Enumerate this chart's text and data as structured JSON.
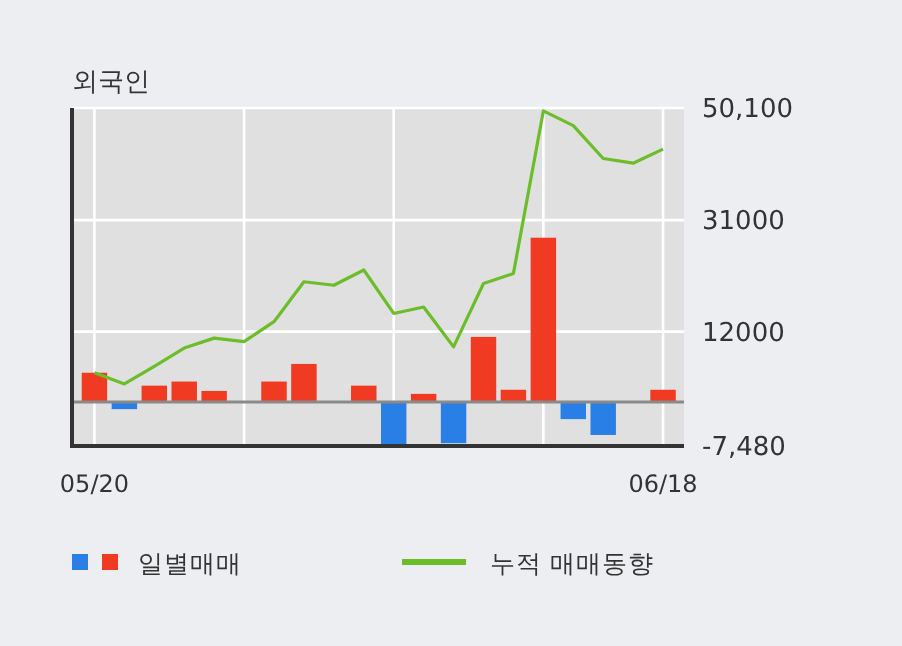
{
  "chart_data": {
    "type": "bar",
    "title": "외국인",
    "categories": [
      "05/20",
      null,
      null,
      null,
      null,
      null,
      null,
      null,
      null,
      null,
      null,
      null,
      null,
      null,
      null,
      null,
      null,
      null,
      null,
      "06/18"
    ],
    "series": [
      {
        "name": "일별매매",
        "values": [
          5000,
          -1200,
          2800,
          3500,
          1900,
          0,
          3500,
          6500,
          0,
          2800,
          -7400,
          1400,
          -7000,
          11100,
          2100,
          28000,
          -2900,
          -5600,
          0,
          2100
        ],
        "colors": [
          "#f03a22",
          "#2a7fe6",
          "#f03a22",
          "#f03a22",
          "#f03a22",
          "#f03a22",
          "#f03a22",
          "#f03a22",
          "#f03a22",
          "#f03a22",
          "#2a7fe6",
          "#f03a22",
          "#2a7fe6",
          "#f03a22",
          "#f03a22",
          "#f03a22",
          "#2a7fe6",
          "#2a7fe6",
          "#f03a22",
          "#f03a22"
        ]
      },
      {
        "name": "누적 매매동향",
        "type": "line",
        "color": "#6cbd2a",
        "values": [
          5000,
          3100,
          6100,
          9200,
          10900,
          10300,
          13700,
          20500,
          19900,
          22500,
          15100,
          16200,
          9400,
          20200,
          21900,
          49600,
          47100,
          41500,
          40700,
          43100
        ]
      }
    ],
    "ylim": [
      -7480,
      50100
    ],
    "yticks": [
      {
        "value": -7480,
        "label": "-7,480"
      },
      12000,
      31000,
      {
        "value": 50100,
        "label": "50,100"
      }
    ],
    "grid": true,
    "legend": "bottom",
    "marker": "none",
    "line_style": "solid"
  }
}
